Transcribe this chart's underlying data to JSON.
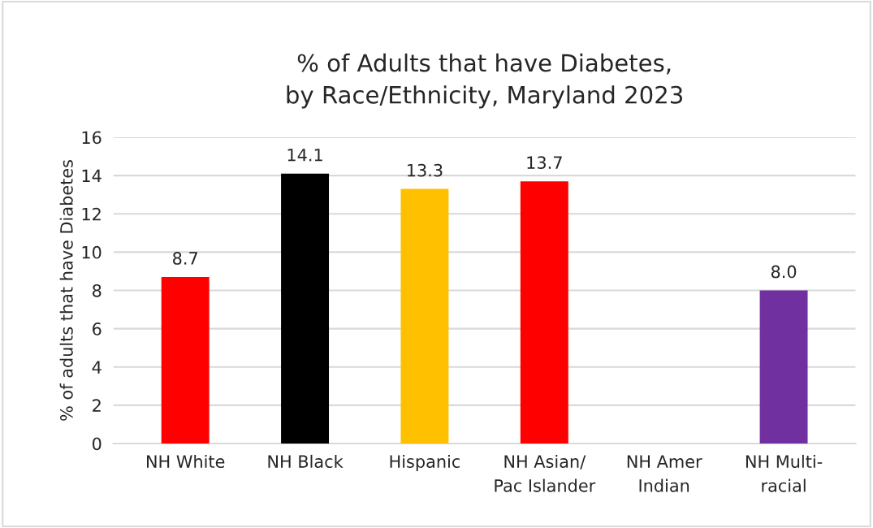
{
  "chart_data": {
    "type": "bar",
    "title": "% of Adults that have Diabetes,\nby Race/Ethnicity, Maryland 2023",
    "ylabel": "% of adults that have Diabetes",
    "categories": [
      "NH White",
      "NH Black",
      "Hispanic",
      "NH Asian/\nPac Islander",
      "NH Amer\nIndian",
      "NH Multi-\nracial"
    ],
    "values": [
      8.7,
      14.1,
      13.3,
      13.7,
      null,
      8.0
    ],
    "value_labels": [
      "8.7",
      "14.1",
      "13.3",
      "13.7",
      null,
      "8.0"
    ],
    "colors": [
      "#ff0000",
      "#000000",
      "#ffc000",
      "#ff0000",
      null,
      "#7030a0"
    ],
    "ylim": [
      0,
      16
    ],
    "yticks": [
      0,
      2,
      4,
      6,
      8,
      10,
      12,
      14,
      16
    ],
    "grid": "y",
    "legend": false
  }
}
